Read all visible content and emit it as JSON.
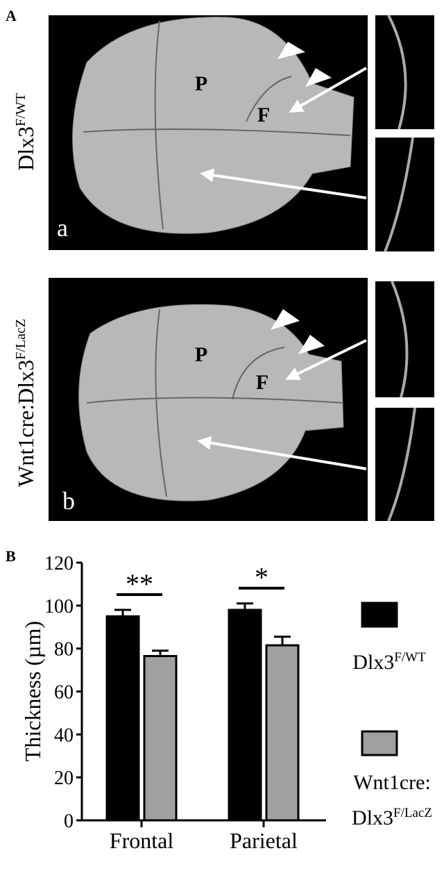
{
  "panel_a": {
    "label": "A",
    "rows": [
      {
        "genotype": "Dlx3",
        "genotype_sup": "F/WT",
        "letter": "a",
        "bone_p": "P",
        "bone_f": "F"
      },
      {
        "genotype": "Wnt1cre:Dlx3",
        "genotype_sup": "F/LacZ",
        "letter": "b",
        "bone_p": "P",
        "bone_f": "F"
      }
    ]
  },
  "chart_data": {
    "type": "bar",
    "panel_label": "B",
    "ylabel": "Thickness (µm)",
    "categories": [
      "Frontal",
      "Parietal"
    ],
    "series": [
      {
        "name": "Dlx3",
        "name_sup": "F/WT",
        "color": "#000000",
        "values": [
          95,
          98
        ],
        "errors": [
          3,
          3
        ]
      },
      {
        "name": "Wnt1cre: Dlx3",
        "name_sup": "F/LacZ",
        "color": "#a0a0a0",
        "values": [
          76.5,
          81.5
        ],
        "errors": [
          2.5,
          4
        ]
      }
    ],
    "significance": [
      "**",
      "*"
    ],
    "ylim": [
      0,
      120
    ],
    "yticks": [
      0,
      20,
      40,
      60,
      80,
      100,
      120
    ]
  }
}
